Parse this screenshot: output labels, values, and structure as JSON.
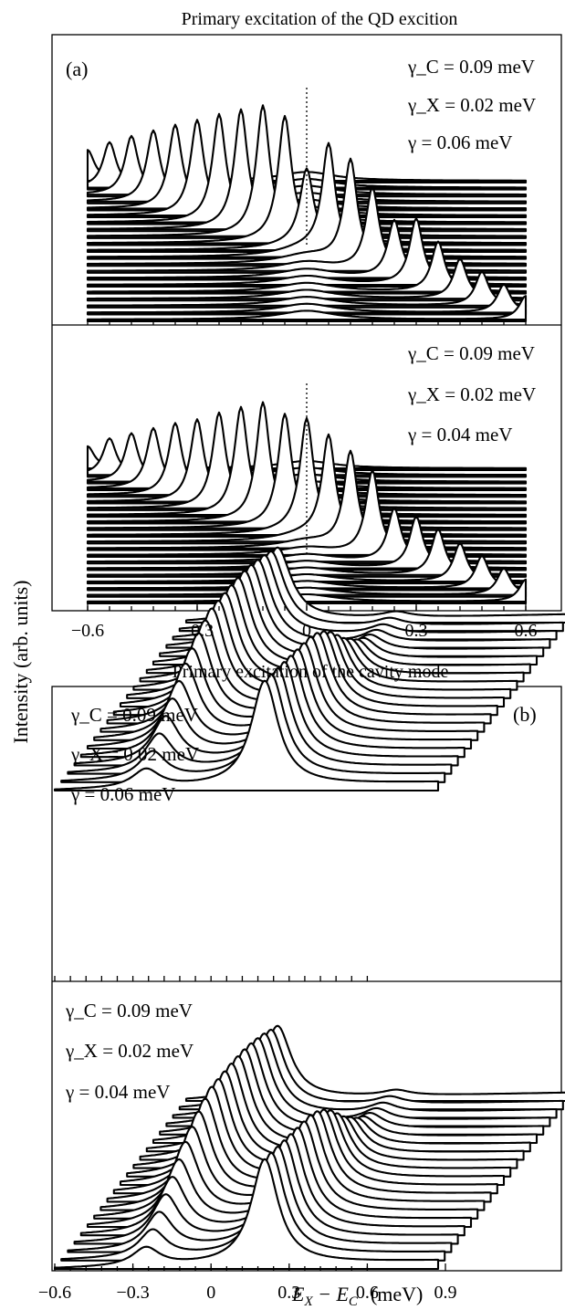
{
  "chart_data": [
    {
      "type": "line",
      "panel": "(a) upper",
      "title": "Primary excitation of the QD excition",
      "tag": "(a)",
      "ylabel": "Intensity (arb. units)",
      "xlim": [
        -0.6,
        0.6
      ],
      "x_ticks": [
        -0.6,
        -0.3,
        0,
        0.3,
        0.6
      ],
      "params": [
        "γ_C = 0.09 meV",
        "γ_X = 0.02 meV",
        "γ = 0.06 meV"
      ],
      "dotted_line_x": 0,
      "series_count": 21,
      "peak_positions": [
        -0.6,
        -0.54,
        -0.48,
        -0.42,
        -0.36,
        -0.3,
        -0.24,
        -0.18,
        -0.12,
        -0.06,
        0,
        0.06,
        0.12,
        0.18,
        0.24,
        0.3,
        0.36,
        0.42,
        0.48,
        0.54,
        0.6
      ],
      "peak_heights": [
        0.42,
        0.62,
        0.8,
        0.97,
        1.14,
        1.3,
        1.47,
        1.62,
        1.75,
        1.66,
        1.0,
        1.48,
        1.4,
        1.12,
        0.78,
        0.9,
        0.68,
        0.54,
        0.46,
        0.38,
        0.32
      ],
      "cavity_peak_height": 0.12
    },
    {
      "type": "line",
      "panel": "(a) lower",
      "xlim": [
        -0.6,
        0.6
      ],
      "x_ticks": [
        -0.6,
        -0.3,
        0,
        0.3,
        0.6
      ],
      "params": [
        "γ_C = 0.09 meV",
        "γ_X = 0.02 meV",
        "γ = 0.04 meV"
      ],
      "dotted_line_x": 0,
      "series_count": 21,
      "peak_positions": [
        -0.6,
        -0.54,
        -0.48,
        -0.42,
        -0.36,
        -0.3,
        -0.24,
        -0.18,
        -0.12,
        -0.06,
        0,
        0.06,
        0.12,
        0.18,
        0.24,
        0.3,
        0.36,
        0.42,
        0.48,
        0.54,
        0.6
      ],
      "peak_heights": [
        0.3,
        0.5,
        0.66,
        0.82,
        0.98,
        1.12,
        1.3,
        1.46,
        1.6,
        1.5,
        1.5,
        1.4,
        1.3,
        1.14,
        0.72,
        0.7,
        0.62,
        0.52,
        0.44,
        0.36,
        0.3
      ],
      "cavity_peak_height": 0.1
    },
    {
      "type": "line",
      "panel": "(b) upper",
      "title": "Primary excitation of the cavity mode",
      "tag": "(b)",
      "params": [
        "γ_C = 0.09 meV",
        "γ_X = 0.02 meV",
        "γ = 0.06 meV"
      ],
      "series_count": 21,
      "left_peak_heights": [
        1.6,
        1.7,
        1.8,
        1.88,
        1.95,
        2.0,
        2.03,
        2.05,
        2.06,
        2.07,
        2.08,
        2.0,
        1.9,
        1.75,
        1.6,
        1.4,
        1.2,
        1.0,
        0.8,
        0.6,
        0.4
      ],
      "right_peak_heights": [
        0.12,
        0.16,
        0.2,
        0.26,
        0.34,
        0.45,
        0.6,
        0.8,
        1.0,
        1.25,
        1.5,
        1.7,
        1.85,
        1.95,
        2.0,
        2.05,
        2.1,
        2.15,
        2.2,
        2.25,
        2.3
      ]
    },
    {
      "type": "line",
      "panel": "(b) lower",
      "xlabel": "E_X − E_C (meV)",
      "x_ticks": [
        -0.6,
        -0.3,
        0,
        0.3,
        0.6,
        0.9
      ],
      "params": [
        "γ_C = 0.09 meV",
        "γ_X = 0.02 meV",
        "γ = 0.04 meV"
      ],
      "series_count": 21,
      "left_peak_heights": [
        1.6,
        1.7,
        1.8,
        1.88,
        1.95,
        2.0,
        2.03,
        2.05,
        2.06,
        2.07,
        2.08,
        2.0,
        1.9,
        1.75,
        1.6,
        1.4,
        1.2,
        1.0,
        0.8,
        0.6,
        0.4
      ],
      "right_peak_heights": [
        0.12,
        0.16,
        0.2,
        0.26,
        0.34,
        0.45,
        0.6,
        0.8,
        1.0,
        1.25,
        1.5,
        1.7,
        1.85,
        1.95,
        2.0,
        2.05,
        2.1,
        2.15,
        2.2,
        2.25,
        2.3
      ]
    }
  ],
  "tick_labels": [
    "−0.6",
    "−0.3",
    "0",
    "0.3",
    "0.6",
    "0.9"
  ],
  "xlabel_parts": {
    "e": "E",
    "x": "X",
    "minus": " − E",
    "c": "C",
    "unit": "(meV)"
  }
}
